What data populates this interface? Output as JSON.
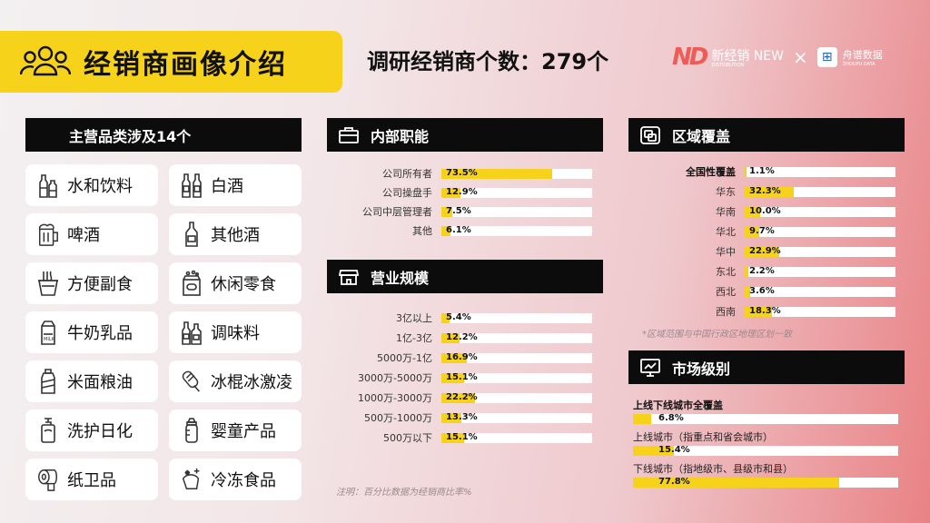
{
  "header": {
    "title": "经销商画像介绍",
    "survey_text": "调研经销商个数：279个"
  },
  "logos": {
    "brand1_mark": "ND",
    "brand1_name": "新经销 NEW",
    "brand1_sub": "DISTRIBUTION",
    "separator": "×",
    "brand2_name": "舟谱数据",
    "brand2_sub": "ZHOUPU DATA"
  },
  "categories": {
    "title": "主营品类涉及14个",
    "items": [
      {
        "label": "水和饮料",
        "icon": "bottles-icon"
      },
      {
        "label": "白酒",
        "icon": "liquor-bottles-icon"
      },
      {
        "label": "啤酒",
        "icon": "beer-mug-icon"
      },
      {
        "label": "其他酒",
        "icon": "wine-bottle-icon"
      },
      {
        "label": "方便副食",
        "icon": "noodle-cup-icon"
      },
      {
        "label": "休闲零食",
        "icon": "snack-pack-icon"
      },
      {
        "label": "牛奶乳品",
        "icon": "milk-carton-icon"
      },
      {
        "label": "调味料",
        "icon": "condiment-bottles-icon"
      },
      {
        "label": "米面粮油",
        "icon": "oil-bottle-icon"
      },
      {
        "label": "冰棍冰激凌",
        "icon": "popsicle-icon"
      },
      {
        "label": "洗护日化",
        "icon": "pump-bottle-icon"
      },
      {
        "label": "婴童产品",
        "icon": "baby-bottle-icon"
      },
      {
        "label": "纸卫品",
        "icon": "tissue-roll-icon"
      },
      {
        "label": "冷冻食品",
        "icon": "frozen-food-icon"
      }
    ]
  },
  "chart_data": [
    {
      "type": "bar",
      "title": "内部职能",
      "categories": [
        "公司所有者",
        "公司操盘手",
        "公司中层管理者",
        "其他"
      ],
      "values": [
        73.5,
        12.9,
        7.5,
        6.1
      ],
      "labels": [
        "73.5%",
        "12.9%",
        "7.5%",
        "6.1%"
      ],
      "ylim": [
        0,
        100
      ]
    },
    {
      "type": "bar",
      "title": "营业规模",
      "categories": [
        "3亿以上",
        "1亿-3亿",
        "5000万-1亿",
        "3000万-5000万",
        "1000万-3000万",
        "500万-1000万",
        "500万以下"
      ],
      "values": [
        5.4,
        12.2,
        16.9,
        15.1,
        22.2,
        13.3,
        15.1
      ],
      "labels": [
        "5.4%",
        "12.2%",
        "16.9%",
        "15.1%",
        "22.2%",
        "13.3%",
        "15.1%"
      ],
      "ylim": [
        0,
        100
      ]
    },
    {
      "type": "bar",
      "title": "区域覆盖",
      "categories": [
        "全国性覆盖",
        "华东",
        "华南",
        "华北",
        "华中",
        "东北",
        "西北",
        "西南"
      ],
      "values": [
        1.1,
        32.3,
        10.0,
        9.7,
        22.9,
        2.2,
        3.6,
        18.3
      ],
      "labels": [
        "1.1%",
        "32.3%",
        "10.0%",
        "9.7%",
        "22.9%",
        "2.2%",
        "3.6%",
        "18.3%"
      ],
      "ylim": [
        0,
        100
      ]
    },
    {
      "type": "bar",
      "title": "市场级别",
      "categories": [
        "上线下线城市全覆盖",
        "上线城市（指重点和省会城市）",
        "下线城市（指地级市、县级市和县）"
      ],
      "values": [
        6.8,
        15.4,
        77.8
      ],
      "labels": [
        "6.8%",
        "15.4%",
        "77.8%"
      ],
      "ylim": [
        0,
        100
      ]
    }
  ],
  "notes": {
    "region": "*区域范围与中国行政区地理区划一致",
    "percent": "注明：百分比数据为经销商比率%"
  },
  "colors": {
    "accent": "#f7d21a",
    "header_bg": "#0c0c0c",
    "track": "#ffffff"
  }
}
